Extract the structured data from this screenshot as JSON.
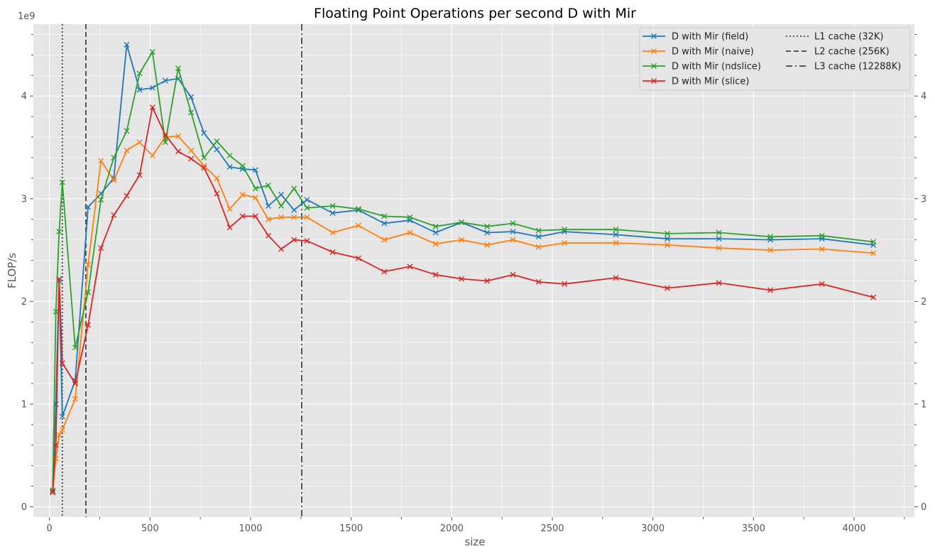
{
  "chart_data": {
    "type": "line",
    "title": "Floating Point Operations per second D with Mir",
    "xlabel": "size",
    "ylabel": "FLOP/s",
    "y_offset_label": "1e9",
    "xlim": [
      -80,
      4300
    ],
    "ylim": [
      -0.1,
      4.7
    ],
    "x_ticks": [
      0,
      500,
      1000,
      1500,
      2000,
      2500,
      3000,
      3500,
      4000
    ],
    "y_ticks": [
      0,
      1,
      2,
      3,
      4
    ],
    "grid": true,
    "legend_position": "top-right",
    "series": [
      {
        "name": "D with Mir (field)",
        "color": "#1f77b4",
        "marker": "x",
        "x": [
          16,
          32,
          48,
          64,
          128,
          192,
          256,
          320,
          384,
          448,
          512,
          576,
          640,
          704,
          768,
          832,
          896,
          960,
          1024,
          1088,
          1152,
          1216,
          1280,
          1408,
          1536,
          1664,
          1792,
          1920,
          2048,
          2176,
          2304,
          2432,
          2560,
          2816,
          3072,
          3328,
          3584,
          3840,
          4096
        ],
        "y": [
          0.15,
          1.0,
          2.2,
          0.88,
          1.23,
          2.92,
          3.05,
          3.2,
          4.5,
          4.06,
          4.08,
          4.15,
          4.17,
          3.99,
          3.64,
          3.48,
          3.31,
          3.29,
          3.28,
          2.93,
          3.04,
          2.89,
          2.99,
          2.86,
          2.89,
          2.76,
          2.79,
          2.67,
          2.77,
          2.67,
          2.68,
          2.63,
          2.68,
          2.65,
          2.61,
          2.61,
          2.6,
          2.61,
          2.55
        ]
      },
      {
        "name": "D with Mir (naive)",
        "color": "#ff7f0e",
        "marker": "x",
        "x": [
          16,
          32,
          48,
          64,
          128,
          192,
          256,
          320,
          384,
          448,
          512,
          576,
          640,
          704,
          768,
          832,
          896,
          960,
          1024,
          1088,
          1152,
          1216,
          1280,
          1408,
          1536,
          1664,
          1792,
          1920,
          2048,
          2176,
          2304,
          2432,
          2560,
          2816,
          3072,
          3328,
          3584,
          3840,
          4096
        ],
        "y": [
          0.14,
          0.47,
          0.7,
          0.75,
          1.05,
          2.36,
          3.37,
          3.18,
          3.47,
          3.55,
          3.42,
          3.6,
          3.61,
          3.47,
          3.32,
          3.2,
          2.9,
          3.04,
          3.01,
          2.8,
          2.82,
          2.82,
          2.82,
          2.67,
          2.74,
          2.6,
          2.67,
          2.56,
          2.6,
          2.55,
          2.6,
          2.53,
          2.57,
          2.57,
          2.55,
          2.52,
          2.5,
          2.51,
          2.47
        ]
      },
      {
        "name": "D with Mir (ndslice)",
        "color": "#2ca02c",
        "marker": "x",
        "x": [
          16,
          32,
          48,
          64,
          128,
          192,
          256,
          320,
          384,
          448,
          512,
          576,
          640,
          704,
          768,
          832,
          896,
          960,
          1024,
          1088,
          1152,
          1216,
          1280,
          1408,
          1536,
          1664,
          1792,
          1920,
          2048,
          2176,
          2304,
          2432,
          2560,
          2816,
          3072,
          3328,
          3584,
          3840,
          4096
        ],
        "y": [
          0.16,
          1.9,
          2.68,
          3.16,
          1.55,
          2.09,
          2.99,
          3.4,
          3.66,
          4.22,
          4.43,
          3.55,
          4.27,
          3.84,
          3.4,
          3.56,
          3.42,
          3.32,
          3.1,
          3.13,
          2.93,
          3.1,
          2.91,
          2.93,
          2.9,
          2.83,
          2.82,
          2.73,
          2.77,
          2.73,
          2.76,
          2.69,
          2.7,
          2.7,
          2.66,
          2.67,
          2.63,
          2.64,
          2.58
        ]
      },
      {
        "name": "D with Mir (slice)",
        "color": "#d62728",
        "marker": "x",
        "x": [
          16,
          32,
          48,
          64,
          128,
          192,
          256,
          320,
          384,
          448,
          512,
          576,
          640,
          704,
          768,
          832,
          896,
          960,
          1024,
          1088,
          1152,
          1216,
          1280,
          1408,
          1536,
          1664,
          1792,
          1920,
          2048,
          2176,
          2304,
          2432,
          2560,
          2816,
          3072,
          3328,
          3584,
          3840,
          4096
        ],
        "y": [
          0.14,
          0.6,
          2.22,
          1.4,
          1.2,
          1.77,
          2.52,
          2.84,
          3.03,
          3.23,
          3.89,
          3.62,
          3.46,
          3.39,
          3.3,
          3.05,
          2.72,
          2.83,
          2.83,
          2.64,
          2.51,
          2.6,
          2.59,
          2.48,
          2.42,
          2.29,
          2.34,
          2.26,
          2.22,
          2.2,
          2.26,
          2.19,
          2.17,
          2.23,
          2.13,
          2.18,
          2.11,
          2.17,
          2.04
        ]
      }
    ],
    "reference_lines": [
      {
        "name": "L1 cache (32K)",
        "x": 64,
        "style": "dotted",
        "color": "#444444"
      },
      {
        "name": "L2 cache (256K)",
        "x": 181,
        "style": "dashed",
        "color": "#444444"
      },
      {
        "name": "L3 cache (12288K)",
        "x": 1254,
        "style": "dashdot",
        "color": "#444444"
      }
    ]
  }
}
